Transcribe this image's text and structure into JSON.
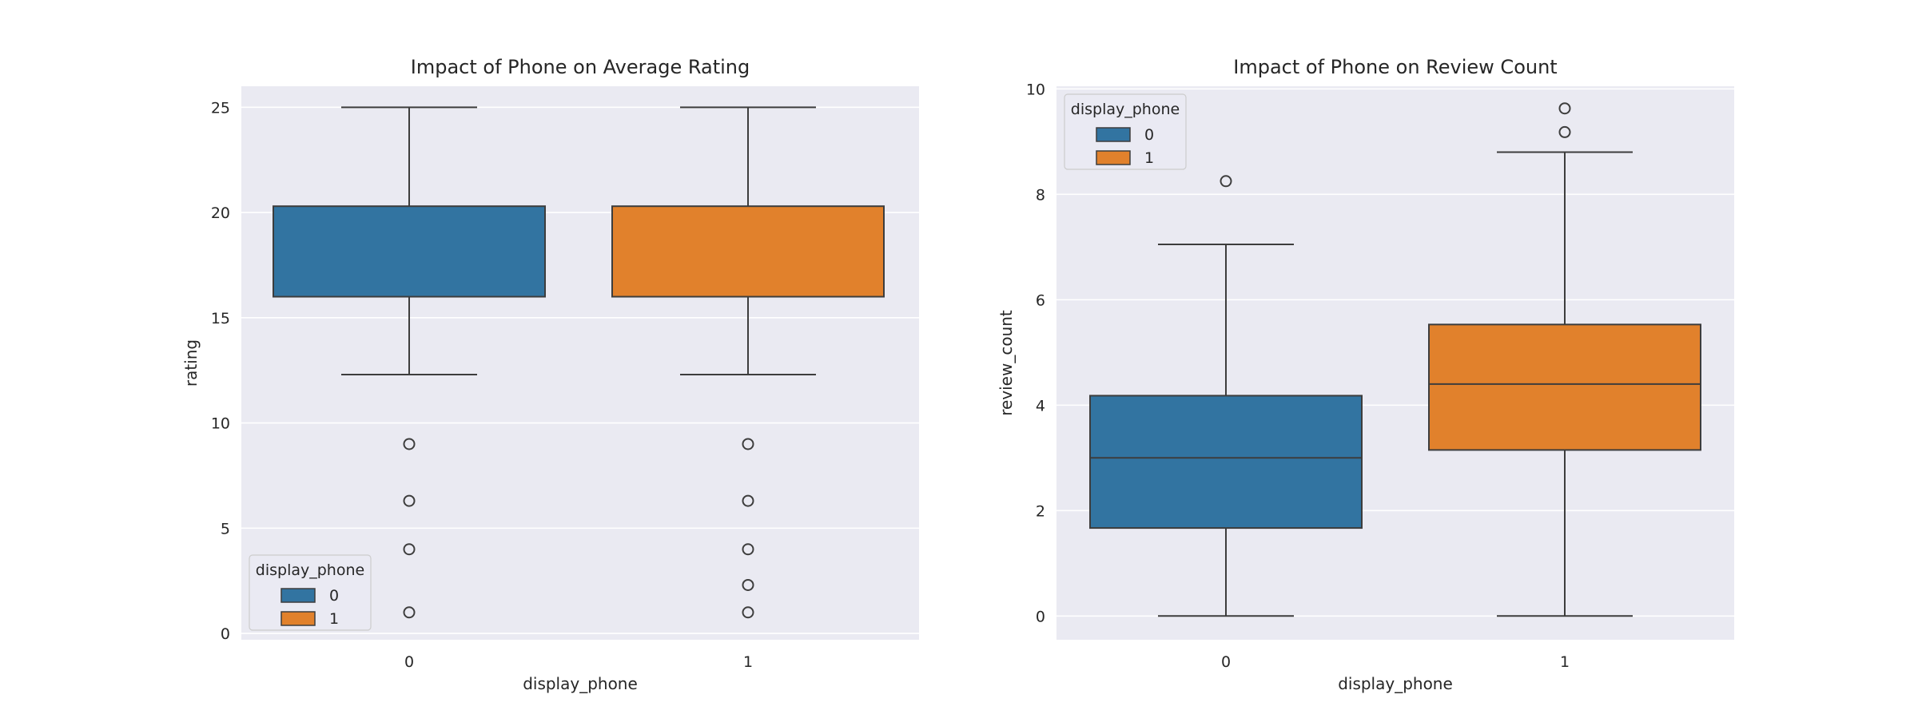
{
  "colors": {
    "0": "#3274a1",
    "1": "#e1812c"
  },
  "chart_data": [
    {
      "type": "box",
      "title": "Impact of Phone on Average Rating",
      "xlabel": "display_phone",
      "ylabel": "rating",
      "categories": [
        "0",
        "1"
      ],
      "ylim": [
        -0.3,
        26
      ],
      "yticks": [
        0,
        5,
        10,
        15,
        20,
        25
      ],
      "grid": true,
      "legend": {
        "title": "display_phone",
        "entries": [
          "0",
          "1"
        ],
        "placement": "lower-left"
      },
      "boxes": [
        {
          "category": "0",
          "whisker_low": 12.3,
          "q1": 16,
          "median": 16,
          "q3": 20.3,
          "whisker_high": 25,
          "fliers": [
            9,
            6.3,
            4,
            1
          ]
        },
        {
          "category": "1",
          "whisker_low": 12.3,
          "q1": 16,
          "median": 16,
          "q3": 20.3,
          "whisker_high": 25,
          "fliers": [
            9,
            6.3,
            4,
            2.3,
            1
          ]
        }
      ]
    },
    {
      "type": "box",
      "title": "Impact of Phone on Review Count",
      "xlabel": "display_phone",
      "ylabel": "review_count",
      "categories": [
        "0",
        "1"
      ],
      "ylim": [
        -0.45,
        10.05
      ],
      "yticks": [
        0,
        2,
        4,
        6,
        8,
        10
      ],
      "grid": true,
      "legend": {
        "title": "display_phone",
        "entries": [
          "0",
          "1"
        ],
        "placement": "upper-left"
      },
      "boxes": [
        {
          "category": "0",
          "whisker_low": 0,
          "q1": 1.67,
          "median": 3.0,
          "q3": 4.18,
          "whisker_high": 7.05,
          "fliers": [
            8.25
          ]
        },
        {
          "category": "1",
          "whisker_low": 0,
          "q1": 3.15,
          "median": 4.4,
          "q3": 5.53,
          "whisker_high": 8.8,
          "fliers": [
            9.18,
            9.63
          ]
        }
      ]
    }
  ]
}
